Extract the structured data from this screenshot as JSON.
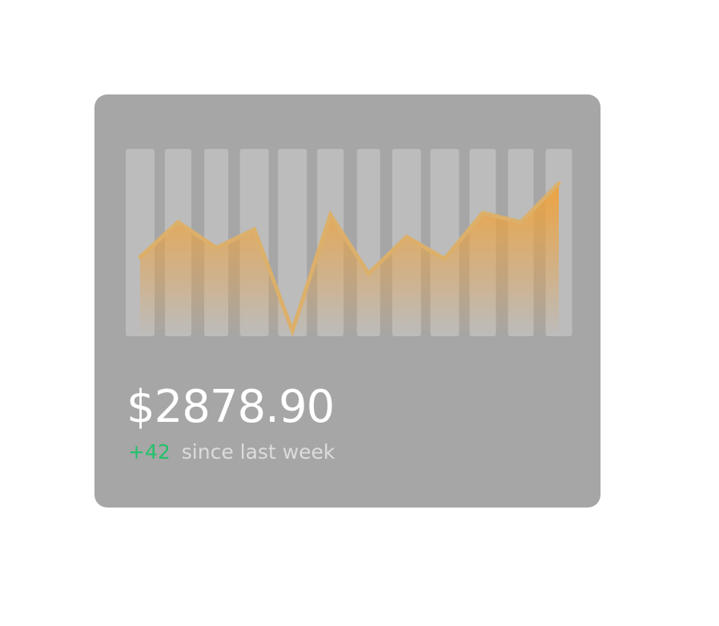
{
  "card": {
    "value": "$2878.90",
    "delta": "+42",
    "since_label": "since last week"
  },
  "colors": {
    "card_bg": "#a6a6a6",
    "column_bg": "#bcbcbc",
    "line": "#dcb06a",
    "area_top": "#f0a23a",
    "delta_positive": "#23c16b"
  },
  "chart_data": {
    "type": "area",
    "x": [
      1,
      2,
      3,
      4,
      5,
      6,
      7,
      8,
      9,
      10,
      11,
      12
    ],
    "series": [
      {
        "values": [
          43,
          62,
          48,
          58,
          3,
          66,
          34,
          54,
          42,
          67,
          62,
          83
        ]
      }
    ],
    "ylim": [
      0,
      100
    ],
    "columns_background": true,
    "grid": false,
    "legend": "none"
  }
}
